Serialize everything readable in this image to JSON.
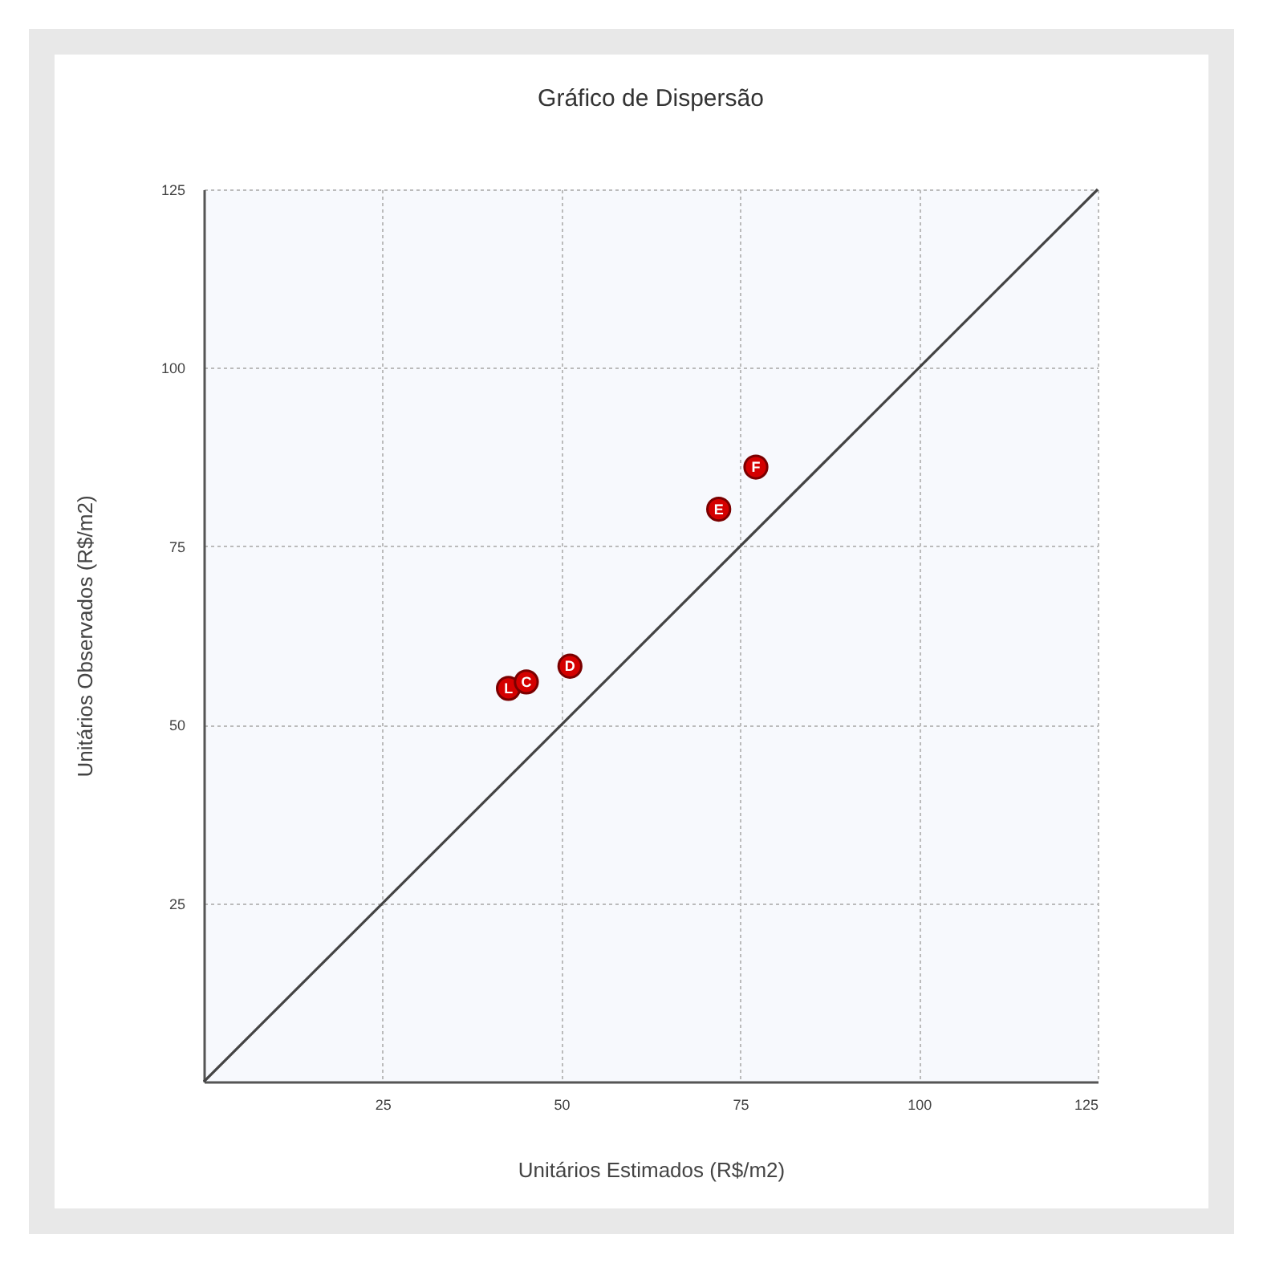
{
  "chart_data": {
    "type": "scatter",
    "title": "Gráfico de Dispersão",
    "xlabel": "Unitários Estimados (R$/m2)",
    "ylabel": "Unitários Observados (R$/m2)",
    "xlim": [
      0,
      125
    ],
    "ylim": [
      0,
      125
    ],
    "xticks": [
      25,
      50,
      75,
      100,
      125
    ],
    "yticks": [
      25,
      50,
      75,
      100,
      125
    ],
    "grid": true,
    "series": [
      {
        "type": "line",
        "color": "#444444",
        "x": [
          0,
          125
        ],
        "values": [
          0,
          125
        ],
        "line_style": "solid"
      },
      {
        "marker": "circle",
        "color": "#d40000",
        "x": [
          42.6,
          45.1,
          51.2,
          72.0,
          77.2
        ],
        "values": [
          55.1,
          56.0,
          58.2,
          80.2,
          86.1
        ]
      }
    ],
    "annotations": [
      {
        "text": "L",
        "x": 42.6,
        "y": 55.1
      },
      {
        "text": "C",
        "x": 45.1,
        "y": 56.0
      },
      {
        "text": "D",
        "x": 51.2,
        "y": 58.2
      },
      {
        "text": "E",
        "x": 72.0,
        "y": 80.2
      },
      {
        "text": "F",
        "x": 77.2,
        "y": 86.1
      }
    ]
  }
}
